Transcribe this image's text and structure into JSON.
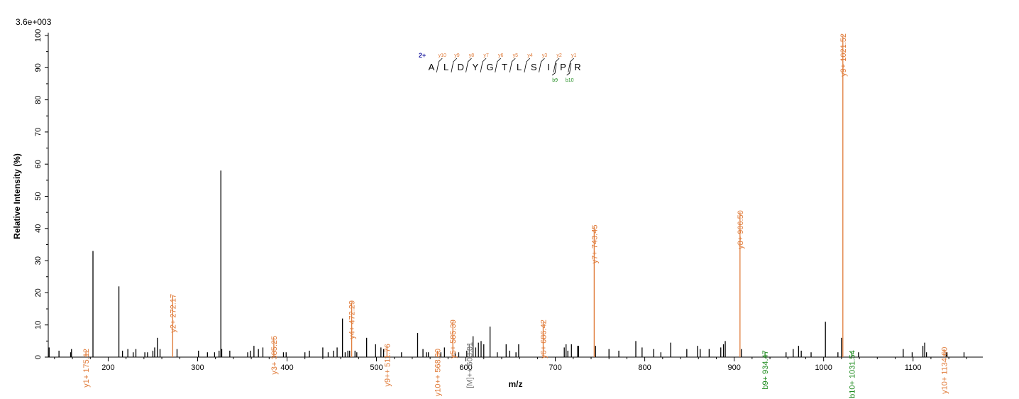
{
  "chart_data": {
    "type": "bar",
    "scale_label": "3.6e+003",
    "xlabel": "m/z",
    "ylabel": "Relative   Intensity (%)",
    "xlim": [
      133,
      1178
    ],
    "ylim": [
      0,
      100
    ],
    "x_ticks": [
      200,
      300,
      400,
      500,
      600,
      700,
      800,
      900,
      1000,
      1100
    ],
    "y_ticks": [
      0,
      10,
      20,
      30,
      40,
      50,
      60,
      70,
      80,
      90,
      100
    ],
    "colors": {
      "y_ion": "#E07B39",
      "b_ion": "#1E8B1E",
      "precursor": "#777777",
      "unassigned": "#000000",
      "charge": "#1A1AA0"
    },
    "peptide": {
      "charge": "2+",
      "sequence": [
        "A",
        "L",
        "D",
        "Y",
        "G",
        "T",
        "L",
        "S",
        "I",
        "P",
        "R"
      ],
      "y_labels": [
        "y10",
        "y9",
        "y8",
        "y7",
        "y6",
        "y5",
        "y4",
        "y3",
        "y2",
        "y1"
      ],
      "b_labels": [
        "b9",
        "b10"
      ]
    },
    "annotated_peaks": [
      {
        "label": "y1+ 175.12",
        "mz": 175.12,
        "intensity": 2.0,
        "ion": "y"
      },
      {
        "label": "y2+ 272.17",
        "mz": 272.17,
        "intensity": 19.0,
        "ion": "y"
      },
      {
        "label": "y3+ 385.25",
        "mz": 385.25,
        "intensity": 6.0,
        "ion": "y"
      },
      {
        "label": "y4+ 472.29",
        "mz": 472.29,
        "intensity": 17.0,
        "ion": "y"
      },
      {
        "label": "y9++ 511.76",
        "mz": 511.76,
        "intensity": 3.5,
        "ion": "y"
      },
      {
        "label": "y10++ 568.30",
        "mz": 568.3,
        "intensity": 2.0,
        "ion": "y"
      },
      {
        "label": "y5+ 585.39",
        "mz": 585.39,
        "intensity": 11.0,
        "ion": "y"
      },
      {
        "label": "[M]++ 603.81",
        "mz": 603.81,
        "intensity": 4.0,
        "ion": "M"
      },
      {
        "label": "y6+ 686.42",
        "mz": 686.42,
        "intensity": 11.0,
        "ion": "y"
      },
      {
        "label": "y7+ 743.45",
        "mz": 743.45,
        "intensity": 40.5,
        "ion": "y"
      },
      {
        "label": "y8+ 906.50",
        "mz": 906.5,
        "intensity": 45.0,
        "ion": "y"
      },
      {
        "label": "b9+ 934.47",
        "mz": 934.47,
        "intensity": 1.5,
        "ion": "b"
      },
      {
        "label": "y9+ 1021.52",
        "mz": 1021.52,
        "intensity": 100.0,
        "ion": "y"
      },
      {
        "label": "b10+ 1031.54",
        "mz": 1031.54,
        "intensity": 1.5,
        "ion": "b"
      },
      {
        "label": "y10+ 1134.60",
        "mz": 1134.6,
        "intensity": 2.5,
        "ion": "y"
      }
    ],
    "peaks": [
      [
        134,
        3
      ],
      [
        145,
        2
      ],
      [
        158,
        1.5
      ],
      [
        159,
        2.5
      ],
      [
        183,
        33
      ],
      [
        212,
        22
      ],
      [
        216,
        2
      ],
      [
        222,
        2.5
      ],
      [
        228,
        1.5
      ],
      [
        231,
        2.5
      ],
      [
        241,
        1.5
      ],
      [
        244,
        1.5
      ],
      [
        250,
        2
      ],
      [
        252,
        3
      ],
      [
        255,
        6
      ],
      [
        258,
        2.5
      ],
      [
        277,
        2.5
      ],
      [
        301,
        2
      ],
      [
        311,
        1.5
      ],
      [
        319,
        1.5
      ],
      [
        324,
        2
      ],
      [
        326,
        58
      ],
      [
        327,
        2.5
      ],
      [
        336,
        2
      ],
      [
        356,
        1.5
      ],
      [
        359,
        2
      ],
      [
        363,
        3.5
      ],
      [
        368,
        2.5
      ],
      [
        373,
        3
      ],
      [
        396,
        1.5
      ],
      [
        399,
        1.5
      ],
      [
        420,
        1.5
      ],
      [
        425,
        2
      ],
      [
        440,
        3
      ],
      [
        446,
        1.5
      ],
      [
        452,
        2
      ],
      [
        456,
        3
      ],
      [
        462,
        12
      ],
      [
        465,
        1.5
      ],
      [
        468,
        2
      ],
      [
        470,
        2
      ],
      [
        476,
        2
      ],
      [
        478,
        1.5
      ],
      [
        489,
        6
      ],
      [
        499,
        4
      ],
      [
        505,
        3
      ],
      [
        508,
        2.5
      ],
      [
        528,
        1.5
      ],
      [
        546,
        7.5
      ],
      [
        552,
        2.5
      ],
      [
        556,
        1.5
      ],
      [
        558,
        1.5
      ],
      [
        572,
        1.5
      ],
      [
        576,
        3
      ],
      [
        588,
        1.5
      ],
      [
        592,
        1.5
      ],
      [
        601,
        2
      ],
      [
        608,
        6.5
      ],
      [
        611,
        3
      ],
      [
        614,
        4.5
      ],
      [
        617,
        5
      ],
      [
        620,
        4
      ],
      [
        627,
        9.5
      ],
      [
        635,
        1.5
      ],
      [
        645,
        4
      ],
      [
        649,
        2
      ],
      [
        656,
        1.5
      ],
      [
        659,
        4
      ],
      [
        710,
        3
      ],
      [
        712,
        4
      ],
      [
        714,
        2
      ],
      [
        718,
        4
      ],
      [
        725,
        3.5
      ],
      [
        726,
        3.5
      ],
      [
        745,
        3.5
      ],
      [
        760,
        2.5
      ],
      [
        771,
        2
      ],
      [
        790,
        5
      ],
      [
        797,
        3
      ],
      [
        810,
        2.5
      ],
      [
        818,
        1.5
      ],
      [
        829,
        4.5
      ],
      [
        847,
        2.5
      ],
      [
        859,
        3.5
      ],
      [
        862,
        2.5
      ],
      [
        872,
        2.5
      ],
      [
        885,
        3
      ],
      [
        888,
        4
      ],
      [
        890,
        5
      ],
      [
        908,
        2.5
      ],
      [
        958,
        1.5
      ],
      [
        966,
        2.5
      ],
      [
        972,
        3.5
      ],
      [
        975,
        2
      ],
      [
        986,
        1.5
      ],
      [
        1002,
        11
      ],
      [
        1016,
        1.5
      ],
      [
        1020,
        6
      ],
      [
        1039,
        1.5
      ],
      [
        1089,
        2.5
      ],
      [
        1099,
        1.5
      ],
      [
        1111,
        3.5
      ],
      [
        1113,
        4.5
      ],
      [
        1115,
        1.5
      ],
      [
        1137,
        1.5
      ],
      [
        1138,
        1.5
      ],
      [
        1157,
        1.5
      ]
    ]
  }
}
